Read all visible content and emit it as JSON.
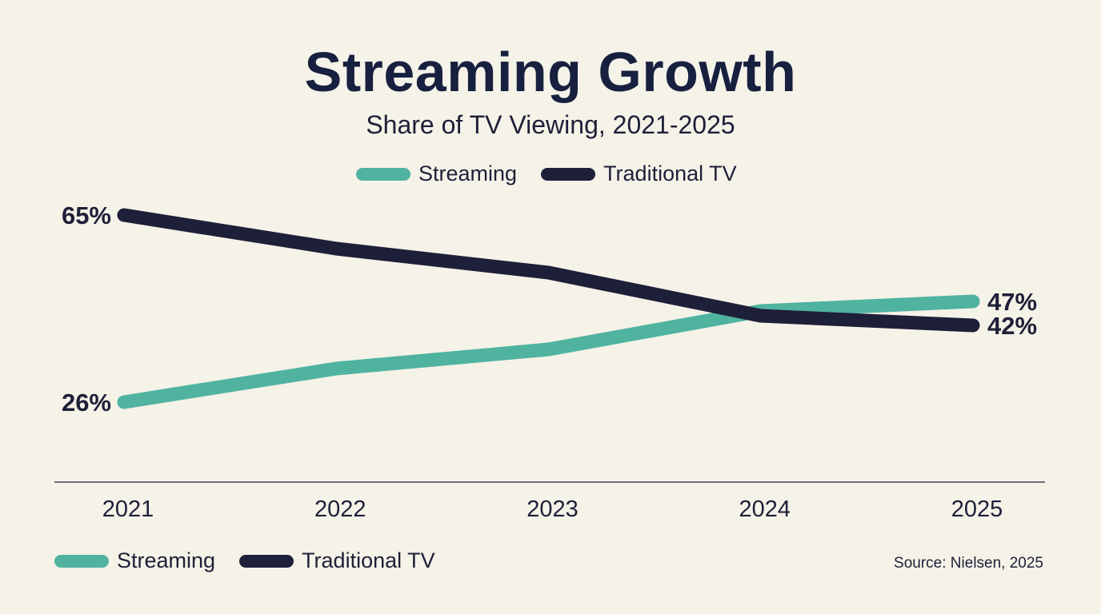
{
  "chart_data": {
    "type": "line",
    "title": "Streaming Growth",
    "subtitle": "Share of TV Viewing, 2021-2025",
    "categories": [
      "2021",
      "2022",
      "2023",
      "2024",
      "2025"
    ],
    "series": [
      {
        "name": "Streaming",
        "color": "#4fb3a0",
        "values": [
          26,
          33,
          37,
          45,
          47
        ]
      },
      {
        "name": "Traditional TV",
        "color": "#1e1f38",
        "values": [
          65,
          58,
          53,
          44,
          42
        ]
      }
    ],
    "data_labels": {
      "Streaming": {
        "start": "26%",
        "end": "47%"
      },
      "Traditional TV": {
        "start": "65%",
        "end": "42%"
      }
    },
    "xlabel": "",
    "ylabel": "",
    "grid": false,
    "legend": [
      "top-center",
      "bottom-left"
    ],
    "source": "Source: Nielsen, 2025"
  }
}
